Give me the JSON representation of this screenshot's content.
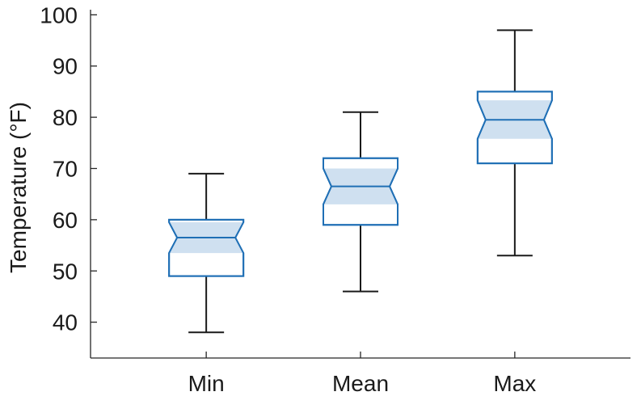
{
  "chart_data": {
    "type": "boxplot",
    "notched": true,
    "categories": [
      "Min",
      "Mean",
      "Max"
    ],
    "ylabel": "Temperature (°F)",
    "ylim": [
      33,
      101
    ],
    "yticks": [
      40,
      50,
      60,
      70,
      80,
      90,
      100
    ],
    "boxes": [
      {
        "category": "Min",
        "whisker_low": 38,
        "q1": 49,
        "notch_low": 53.5,
        "median": 56.5,
        "notch_high": 59.5,
        "q3": 60,
        "whisker_high": 69
      },
      {
        "category": "Mean",
        "whisker_low": 46,
        "q1": 59,
        "notch_low": 63,
        "median": 66.5,
        "notch_high": 70,
        "q3": 72,
        "whisker_high": 81
      },
      {
        "category": "Max",
        "whisker_low": 53,
        "q1": 71,
        "notch_low": 75.8,
        "median": 79.5,
        "notch_high": 83.3,
        "q3": 85,
        "whisker_high": 97
      }
    ],
    "colors": {
      "box": "#1f6fb5",
      "notch_fill": "#cfe0f0",
      "whisker": "#1a1a1a",
      "axis": "#262626"
    }
  }
}
